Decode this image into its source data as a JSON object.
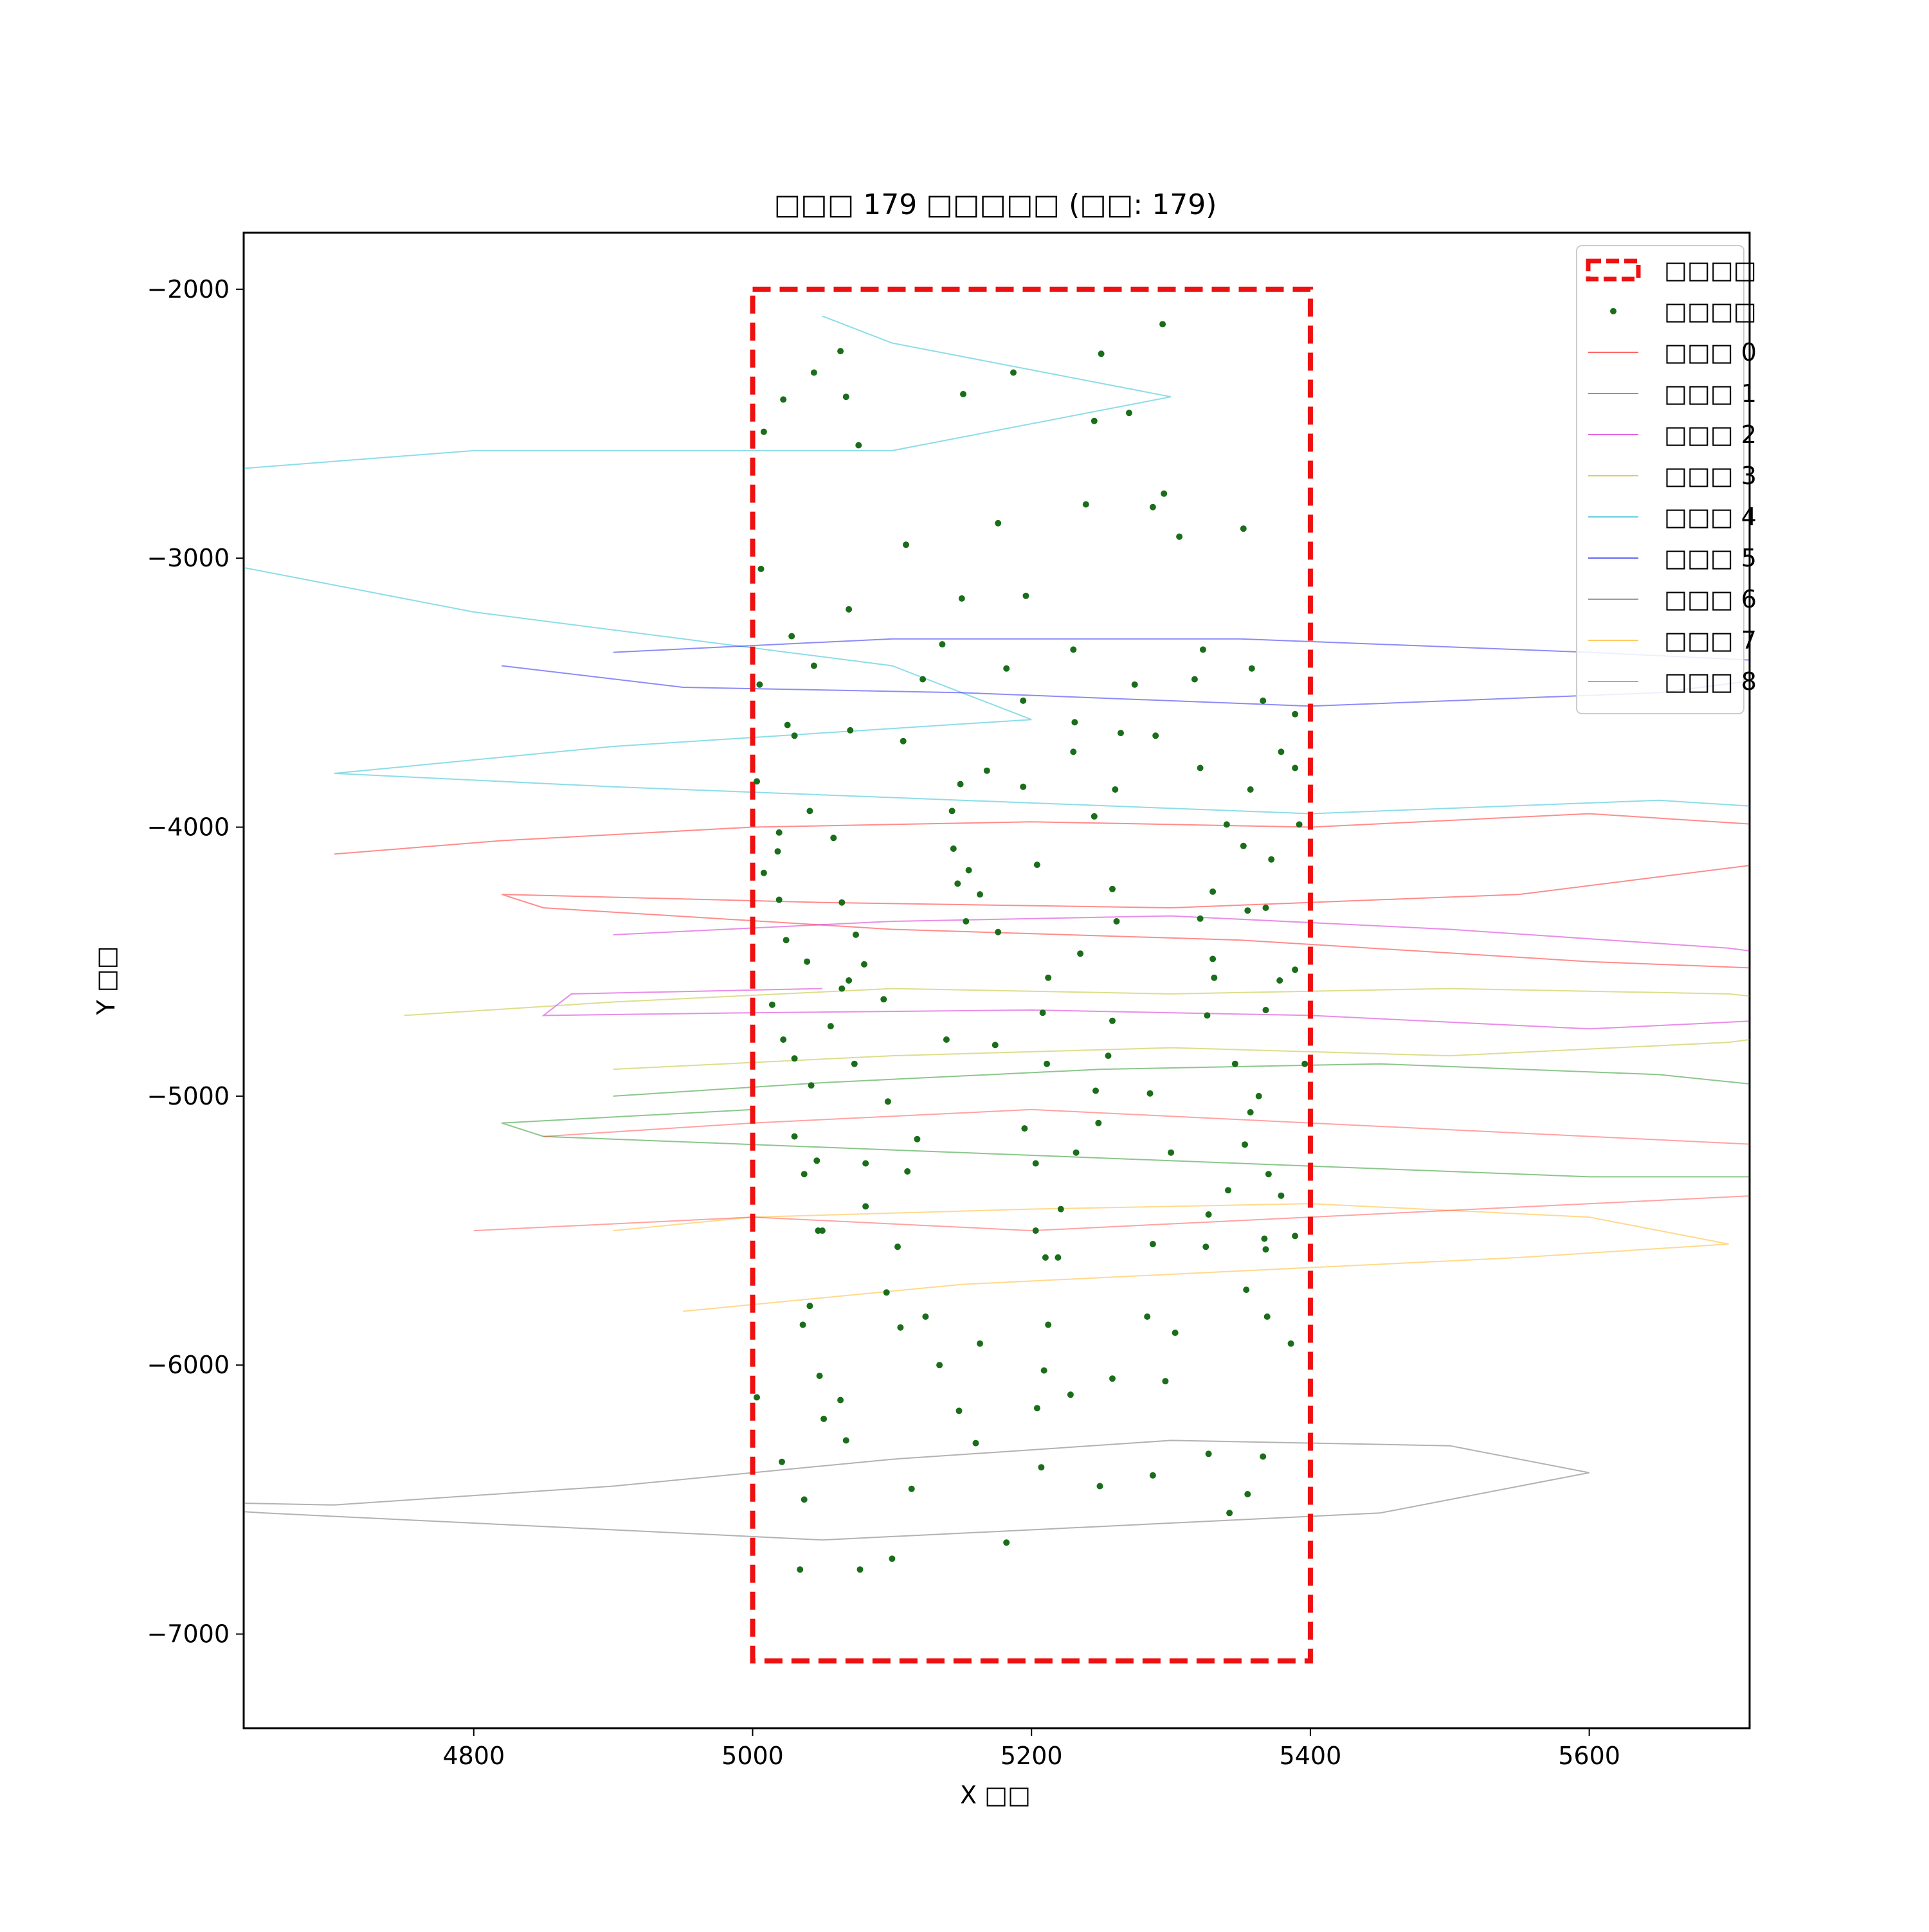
{
  "chart_data": {
    "type": "line",
    "title": "□□□ 179 □□□□□ (□□: 179)",
    "xlabel": "X □□",
    "ylabel": "Y □□",
    "xlim": [
      4635,
      5715
    ],
    "ylim": [
      -7350,
      -1790
    ],
    "xticks": [
      4800,
      5000,
      5200,
      5400,
      5600
    ],
    "yticks": [
      -2000,
      -3000,
      -4000,
      -5000,
      -6000,
      -7000
    ],
    "grid": false,
    "legend_position": "upper right",
    "region": {
      "label": "□□□□",
      "x": [
        5000,
        5400
      ],
      "y": [
        -7100,
        -2000
      ],
      "color": "#ee1111",
      "style": "dashed"
    },
    "points_label": "□□□□",
    "points_color": "#1a6e1a",
    "series": [
      {
        "name": "□□□ 0",
        "color": "#ff0000",
        "values": [
          [
            4700,
            -4100
          ],
          [
            4820,
            -4050
          ],
          [
            5000,
            -4000
          ],
          [
            5200,
            -3980
          ],
          [
            5400,
            -4000
          ],
          [
            5600,
            -3950
          ],
          [
            5750,
            -4000
          ],
          [
            5780,
            -4100
          ],
          [
            5550,
            -4250
          ],
          [
            5300,
            -4300
          ],
          [
            5050,
            -4280
          ],
          [
            4820,
            -4250
          ],
          [
            4850,
            -4300
          ],
          [
            5100,
            -4380
          ],
          [
            5350,
            -4420
          ],
          [
            5600,
            -4500
          ],
          [
            5850,
            -4550
          ]
        ]
      },
      {
        "name": "□□□ 1",
        "color": "#008000",
        "values": [
          [
            4900,
            -5000
          ],
          [
            5050,
            -4950
          ],
          [
            5250,
            -4900
          ],
          [
            5450,
            -4880
          ],
          [
            5650,
            -4920
          ],
          [
            5800,
            -5000
          ],
          [
            5900,
            -5150
          ],
          [
            5820,
            -5300
          ],
          [
            5600,
            -5300
          ],
          [
            5350,
            -5250
          ],
          [
            5100,
            -5200
          ],
          [
            4850,
            -5150
          ],
          [
            4820,
            -5100
          ],
          [
            5000,
            -5050
          ]
        ]
      },
      {
        "name": "□□□ 2",
        "color": "#cc00cc",
        "values": [
          [
            4900,
            -4400
          ],
          [
            5100,
            -4350
          ],
          [
            5300,
            -4330
          ],
          [
            5500,
            -4380
          ],
          [
            5700,
            -4450
          ],
          [
            5850,
            -4550
          ],
          [
            5800,
            -4700
          ],
          [
            5600,
            -4750
          ],
          [
            5400,
            -4700
          ],
          [
            5200,
            -4680
          ],
          [
            5000,
            -4690
          ],
          [
            4850,
            -4700
          ],
          [
            4870,
            -4620
          ],
          [
            5050,
            -4600
          ]
        ]
      },
      {
        "name": "□□□ 3",
        "color": "#b3b300",
        "values": [
          [
            4750,
            -4700
          ],
          [
            4900,
            -4650
          ],
          [
            5100,
            -4600
          ],
          [
            5300,
            -4620
          ],
          [
            5500,
            -4600
          ],
          [
            5700,
            -4620
          ],
          [
            5850,
            -4700
          ],
          [
            5700,
            -4800
          ],
          [
            5500,
            -4850
          ],
          [
            5300,
            -4820
          ],
          [
            5100,
            -4850
          ],
          [
            4900,
            -4900
          ]
        ]
      },
      {
        "name": "□□□ 4",
        "color": "#00b3cc",
        "values": [
          [
            5050,
            -2100
          ],
          [
            5100,
            -2200
          ],
          [
            5300,
            -2400
          ],
          [
            5100,
            -2600
          ],
          [
            4800,
            -2600
          ],
          [
            4550,
            -2700
          ],
          [
            4500,
            -2900
          ],
          [
            4800,
            -3200
          ],
          [
            5100,
            -3400
          ],
          [
            5200,
            -3600
          ],
          [
            4900,
            -3700
          ],
          [
            4700,
            -3800
          ],
          [
            4900,
            -3850
          ],
          [
            5150,
            -3900
          ],
          [
            5400,
            -3950
          ],
          [
            5650,
            -3900
          ],
          [
            5800,
            -3950
          ]
        ]
      },
      {
        "name": "□□□ 5",
        "color": "#0000ee",
        "values": [
          [
            4900,
            -3350
          ],
          [
            5100,
            -3300
          ],
          [
            5350,
            -3300
          ],
          [
            5600,
            -3350
          ],
          [
            5800,
            -3400
          ],
          [
            5650,
            -3500
          ],
          [
            5400,
            -3550
          ],
          [
            5150,
            -3500
          ],
          [
            4950,
            -3480
          ],
          [
            4820,
            -3400
          ]
        ]
      },
      {
        "name": "□□□ 6",
        "color": "#555555",
        "values": [
          [
            4500,
            -6500
          ],
          [
            4700,
            -6520
          ],
          [
            4900,
            -6450
          ],
          [
            5100,
            -6350
          ],
          [
            5300,
            -6280
          ],
          [
            5500,
            -6300
          ],
          [
            5600,
            -6400
          ],
          [
            5450,
            -6550
          ],
          [
            5250,
            -6600
          ],
          [
            5050,
            -6650
          ],
          [
            4850,
            -6600
          ],
          [
            4650,
            -6550
          ],
          [
            4500,
            -6500
          ]
        ]
      },
      {
        "name": "□□□ 7",
        "color": "#ffaa00",
        "values": [
          [
            4950,
            -5800
          ],
          [
            5150,
            -5700
          ],
          [
            5350,
            -5650
          ],
          [
            5550,
            -5600
          ],
          [
            5700,
            -5550
          ],
          [
            5600,
            -5450
          ],
          [
            5400,
            -5400
          ],
          [
            5200,
            -5420
          ],
          [
            5000,
            -5450
          ],
          [
            4900,
            -5500
          ]
        ]
      },
      {
        "name": "□□□ 8",
        "color": "#ff3333",
        "values": [
          [
            4800,
            -5500
          ],
          [
            5000,
            -5450
          ],
          [
            5200,
            -5500
          ],
          [
            5400,
            -5450
          ],
          [
            5600,
            -5400
          ],
          [
            5800,
            -5350
          ],
          [
            5900,
            -5300
          ],
          [
            5800,
            -5200
          ],
          [
            5600,
            -5150
          ],
          [
            5400,
            -5100
          ],
          [
            5200,
            -5050
          ],
          [
            5000,
            -5100
          ],
          [
            4850,
            -5150
          ]
        ]
      }
    ],
    "points": [
      [
        5044,
        -2310
      ],
      [
        5063,
        -2230
      ],
      [
        5022,
        -2410
      ],
      [
        5067,
        -2400
      ],
      [
        5008,
        -2530
      ],
      [
        5076,
        -2580
      ],
      [
        5151,
        -2390
      ],
      [
        5187,
        -2310
      ],
      [
        5250,
        -2240
      ],
      [
        5294,
        -2130
      ],
      [
        5245,
        -2490
      ],
      [
        5270,
        -2460
      ],
      [
        5239,
        -2800
      ],
      [
        5287,
        -2810
      ],
      [
        5295,
        -2760
      ],
      [
        5176,
        -2870
      ],
      [
        5110,
        -2950
      ],
      [
        5306,
        -2920
      ],
      [
        5352,
        -2890
      ],
      [
        5006,
        -3040
      ],
      [
        5069,
        -3190
      ],
      [
        5150,
        -3150
      ],
      [
        5196,
        -3140
      ],
      [
        5028,
        -3290
      ],
      [
        5136,
        -3320
      ],
      [
        5230,
        -3340
      ],
      [
        5323,
        -3340
      ],
      [
        5044,
        -3400
      ],
      [
        5182,
        -3410
      ],
      [
        5122,
        -3450
      ],
      [
        5274,
        -3470
      ],
      [
        5317,
        -3450
      ],
      [
        5358,
        -3410
      ],
      [
        5366,
        -3530
      ],
      [
        5389,
        -3580
      ],
      [
        5005,
        -3470
      ],
      [
        5194,
        -3530
      ],
      [
        5025,
        -3620
      ],
      [
        5030,
        -3660
      ],
      [
        5070,
        -3640
      ],
      [
        5108,
        -3680
      ],
      [
        5231,
        -3610
      ],
      [
        5264,
        -3650
      ],
      [
        5289,
        -3660
      ],
      [
        5379,
        -3720
      ],
      [
        5230,
        -3720
      ],
      [
        5321,
        -3780
      ],
      [
        5389,
        -3780
      ],
      [
        5003,
        -3830
      ],
      [
        5168,
        -3790
      ],
      [
        5149,
        -3840
      ],
      [
        5194,
        -3850
      ],
      [
        5260,
        -3860
      ],
      [
        5357,
        -3860
      ],
      [
        5392,
        -3990
      ],
      [
        5041,
        -3940
      ],
      [
        5143,
        -3940
      ],
      [
        5245,
        -3960
      ],
      [
        5340,
        -3990
      ],
      [
        5352,
        -4070
      ],
      [
        5058,
        -4040
      ],
      [
        5018,
        -4090
      ],
      [
        5019,
        -4020
      ],
      [
        5144,
        -4080
      ],
      [
        5204,
        -4140
      ],
      [
        5008,
        -4170
      ],
      [
        5155,
        -4160
      ],
      [
        5372,
        -4120
      ],
      [
        5163,
        -4250
      ],
      [
        5019,
        -4270
      ],
      [
        5064,
        -4280
      ],
      [
        5147,
        -4210
      ],
      [
        5258,
        -4230
      ],
      [
        5330,
        -4240
      ],
      [
        5355,
        -4310
      ],
      [
        5321,
        -4340
      ],
      [
        5368,
        -4300
      ],
      [
        5261,
        -4350
      ],
      [
        5074,
        -4400
      ],
      [
        5176,
        -4390
      ],
      [
        5024,
        -4420
      ],
      [
        5039,
        -4500
      ],
      [
        5080,
        -4510
      ],
      [
        5153,
        -4350
      ],
      [
        5235,
        -4470
      ],
      [
        5330,
        -4490
      ],
      [
        5212,
        -4560
      ],
      [
        5331,
        -4560
      ],
      [
        5378,
        -4570
      ],
      [
        5389,
        -4530
      ],
      [
        5069,
        -4570
      ],
      [
        5064,
        -4600
      ],
      [
        5014,
        -4660
      ],
      [
        5094,
        -4640
      ],
      [
        5208,
        -4690
      ],
      [
        5258,
        -4720
      ],
      [
        5368,
        -4680
      ],
      [
        5326,
        -4700
      ],
      [
        5056,
        -4740
      ],
      [
        5139,
        -4790
      ],
      [
        5174,
        -4810
      ],
      [
        5022,
        -4790
      ],
      [
        5030,
        -4860
      ],
      [
        5073,
        -4880
      ],
      [
        5211,
        -4880
      ],
      [
        5255,
        -4850
      ],
      [
        5346,
        -4880
      ],
      [
        5396,
        -4880
      ],
      [
        5042,
        -4960
      ],
      [
        5097,
        -5020
      ],
      [
        5246,
        -4980
      ],
      [
        5285,
        -4990
      ],
      [
        5363,
        -5000
      ],
      [
        5357,
        -5060
      ],
      [
        5030,
        -5150
      ],
      [
        5118,
        -5160
      ],
      [
        5195,
        -5120
      ],
      [
        5248,
        -5100
      ],
      [
        5300,
        -5210
      ],
      [
        5232,
        -5210
      ],
      [
        5353,
        -5180
      ],
      [
        5046,
        -5240
      ],
      [
        5037,
        -5290
      ],
      [
        5081,
        -5250
      ],
      [
        5111,
        -5280
      ],
      [
        5203,
        -5250
      ],
      [
        5341,
        -5350
      ],
      [
        5370,
        -5290
      ],
      [
        5379,
        -5370
      ],
      [
        5327,
        -5440
      ],
      [
        5221,
        -5420
      ],
      [
        5047,
        -5500
      ],
      [
        5050,
        -5500
      ],
      [
        5081,
        -5410
      ],
      [
        5203,
        -5500
      ],
      [
        5287,
        -5550
      ],
      [
        5325,
        -5560
      ],
      [
        5389,
        -5520
      ],
      [
        5367,
        -5530
      ],
      [
        5210,
        -5600
      ],
      [
        5219,
        -5600
      ],
      [
        5104,
        -5560
      ],
      [
        5368,
        -5570
      ],
      [
        5096,
        -5730
      ],
      [
        5354,
        -5720
      ],
      [
        5041,
        -5780
      ],
      [
        5124,
        -5820
      ],
      [
        5036,
        -5850
      ],
      [
        5106,
        -5860
      ],
      [
        5212,
        -5850
      ],
      [
        5283,
        -5820
      ],
      [
        5303,
        -5880
      ],
      [
        5369,
        -5820
      ],
      [
        5386,
        -5920
      ],
      [
        5163,
        -5920
      ],
      [
        5134,
        -6000
      ],
      [
        5048,
        -6040
      ],
      [
        5209,
        -6020
      ],
      [
        5258,
        -6050
      ],
      [
        5296,
        -6060
      ],
      [
        5003,
        -6120
      ],
      [
        5063,
        -6130
      ],
      [
        5228,
        -6110
      ],
      [
        5204,
        -6160
      ],
      [
        5148,
        -6170
      ],
      [
        5051,
        -6200
      ],
      [
        5067,
        -6280
      ],
      [
        5160,
        -6290
      ],
      [
        5021,
        -6360
      ],
      [
        5207,
        -6380
      ],
      [
        5327,
        -6330
      ],
      [
        5366,
        -6340
      ],
      [
        5287,
        -6410
      ],
      [
        5249,
        -6450
      ],
      [
        5114,
        -6460
      ],
      [
        5037,
        -6500
      ],
      [
        5355,
        -6480
      ],
      [
        5342,
        -6550
      ],
      [
        5182,
        -6660
      ],
      [
        5100,
        -6720
      ],
      [
        5077,
        -6760
      ],
      [
        5034,
        -6760
      ]
    ]
  }
}
